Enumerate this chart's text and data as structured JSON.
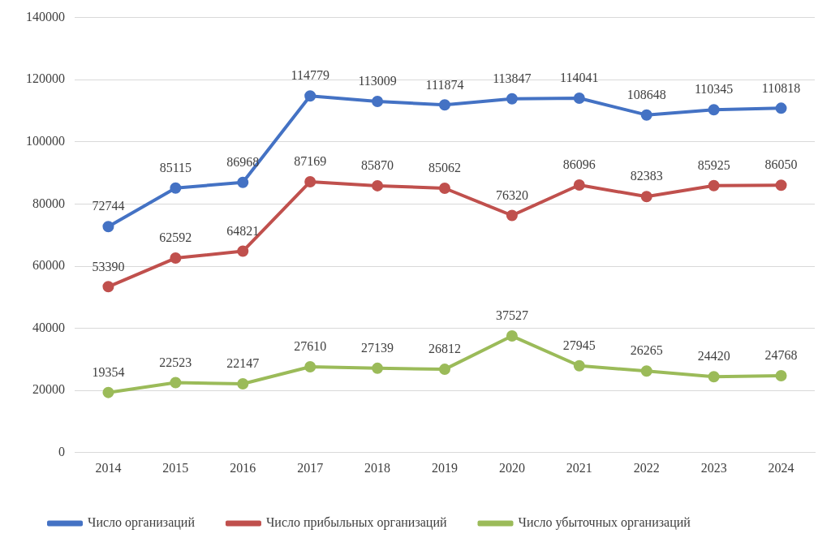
{
  "chart_data": {
    "type": "line",
    "categories": [
      "2014",
      "2015",
      "2016",
      "2017",
      "2018",
      "2019",
      "2020",
      "2021",
      "2022",
      "2023",
      "2024"
    ],
    "series": [
      {
        "name": "Число организаций",
        "color": "#4472c4",
        "values": [
          72744,
          85115,
          86968,
          114779,
          113009,
          111874,
          113847,
          114041,
          108648,
          110345,
          110818
        ]
      },
      {
        "name": "Число прибыльных организаций",
        "color": "#c0504d",
        "values": [
          53390,
          62592,
          64821,
          87169,
          85870,
          85062,
          76320,
          86096,
          82383,
          85925,
          86050
        ]
      },
      {
        "name": "Число убыточных организаций",
        "color": "#9bbb59",
        "values": [
          19354,
          22523,
          22147,
          27610,
          27139,
          26812,
          37527,
          27945,
          26265,
          24420,
          24768
        ]
      }
    ],
    "ylim": [
      0,
      140000
    ],
    "yticks": [
      0,
      20000,
      40000,
      60000,
      80000,
      100000,
      120000,
      140000
    ],
    "grid": "y",
    "legend": "bottom",
    "marker": "circle",
    "line_style": "solid",
    "data_labels": true
  }
}
